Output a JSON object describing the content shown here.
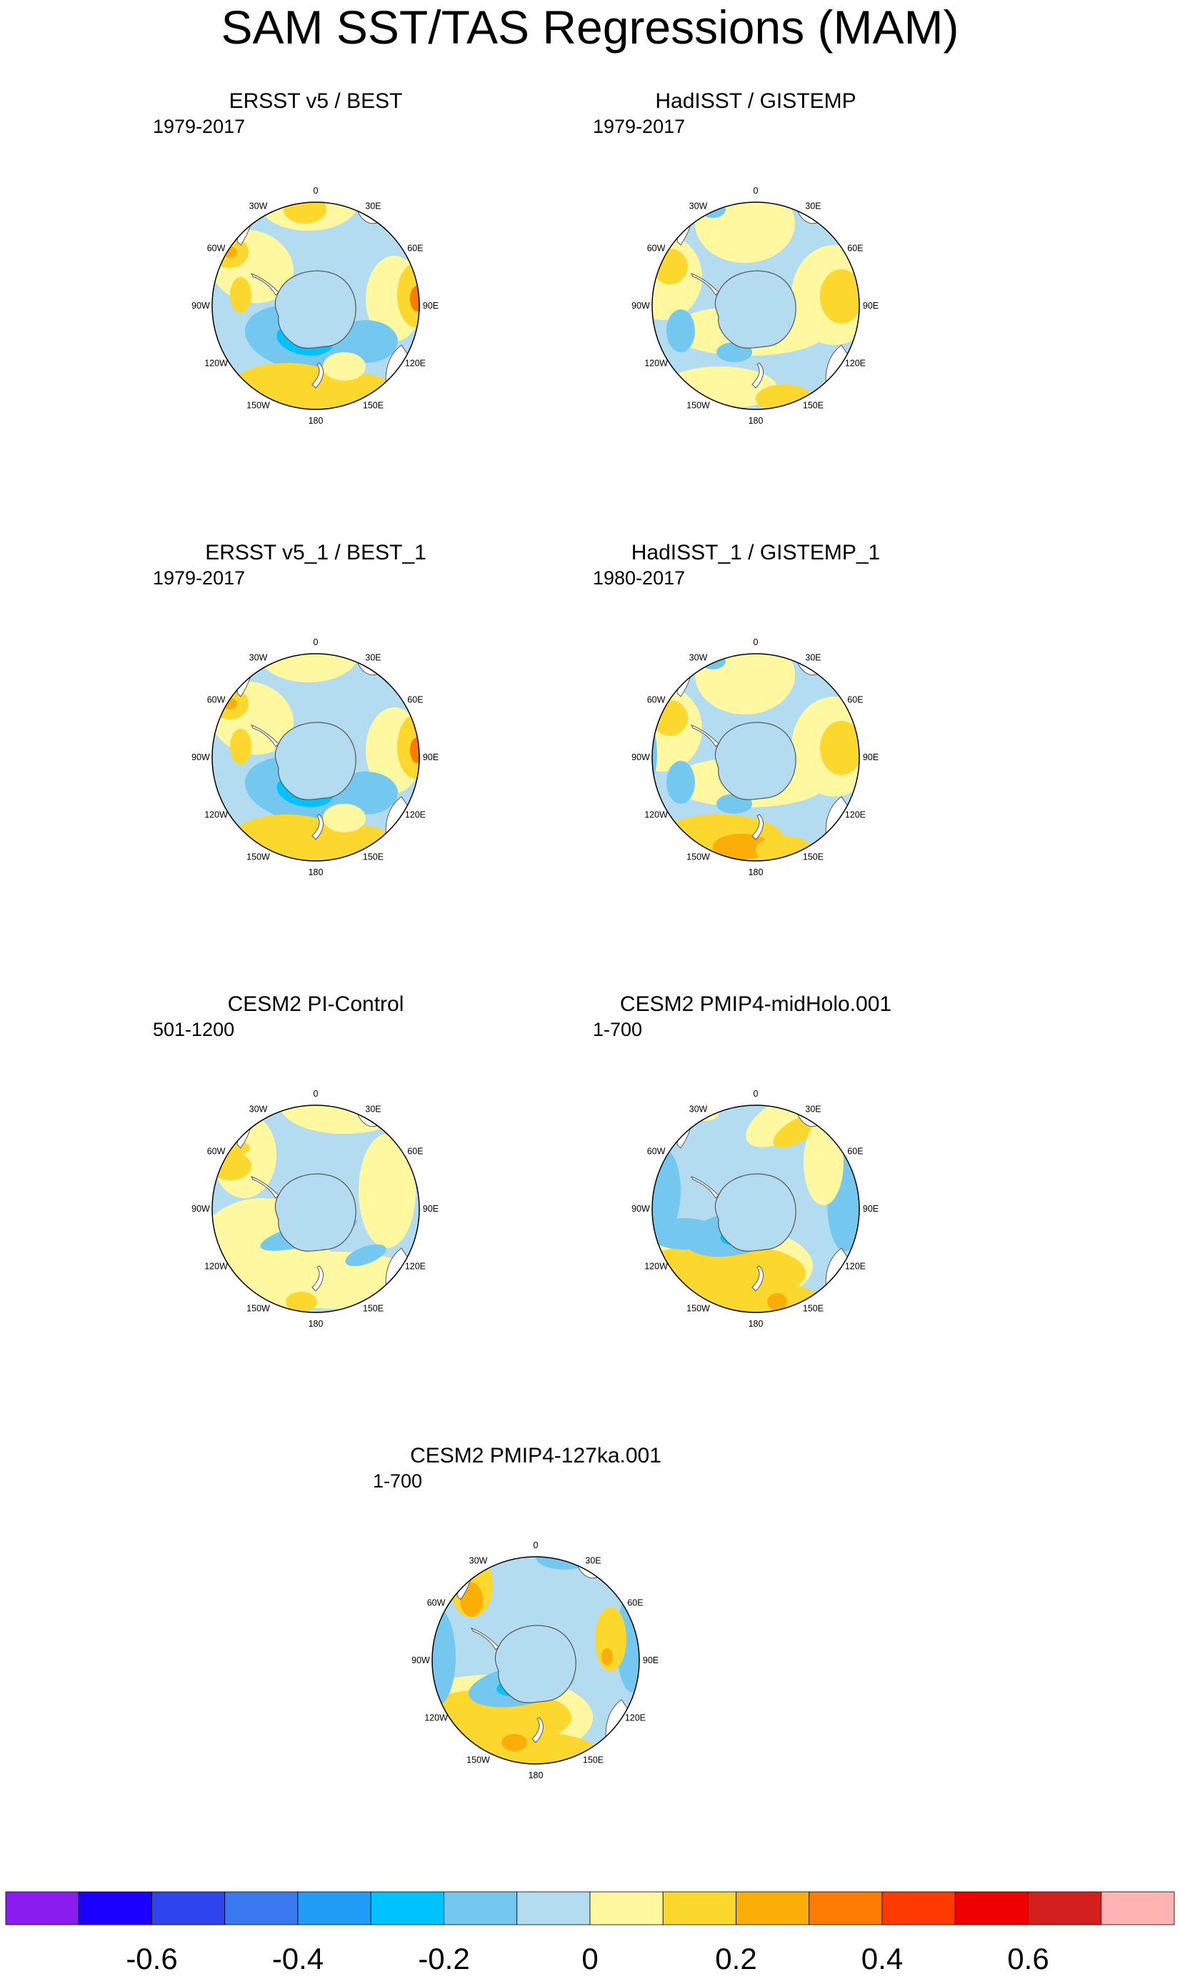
{
  "title": "SAM SST/TAS Regressions (MAM)",
  "panels": [
    {
      "name": "ERSST v5 / BEST",
      "period": "1979-2017"
    },
    {
      "name": "HadISST / GISTEMP",
      "period": "1979-2017"
    },
    {
      "name": "ERSST v5_1 / BEST_1",
      "period": "1979-2017"
    },
    {
      "name": "HadISST_1 / GISTEMP_1",
      "period": "1980-2017"
    },
    {
      "name": "CESM2 PI-Control",
      "period": "501-1200"
    },
    {
      "name": "CESM2 PMIP4-midHolo.001",
      "period": "1-700"
    },
    {
      "name": "CESM2 PMIP4-127ka.001",
      "period": "1-700"
    }
  ],
  "longitude_labels": [
    "0",
    "30E",
    "60E",
    "90E",
    "120E",
    "150E",
    "180",
    "150W",
    "120W",
    "90W",
    "60W",
    "30W"
  ],
  "colorbar": {
    "colors": [
      "#8b1cf0",
      "#1c00ff",
      "#2e44ee",
      "#3a78ef",
      "#229df7",
      "#00c2ff",
      "#74c7ef",
      "#b3dcf0",
      "#fff8a0",
      "#fcd82f",
      "#fbae07",
      "#fc7b00",
      "#ff3a00",
      "#ee0000",
      "#d41f1f",
      "#ffb3b3"
    ],
    "tick_labels": [
      "-0.6",
      "-0.4",
      "-0.2",
      "0",
      "0.2",
      "0.4",
      "0.6"
    ]
  }
}
